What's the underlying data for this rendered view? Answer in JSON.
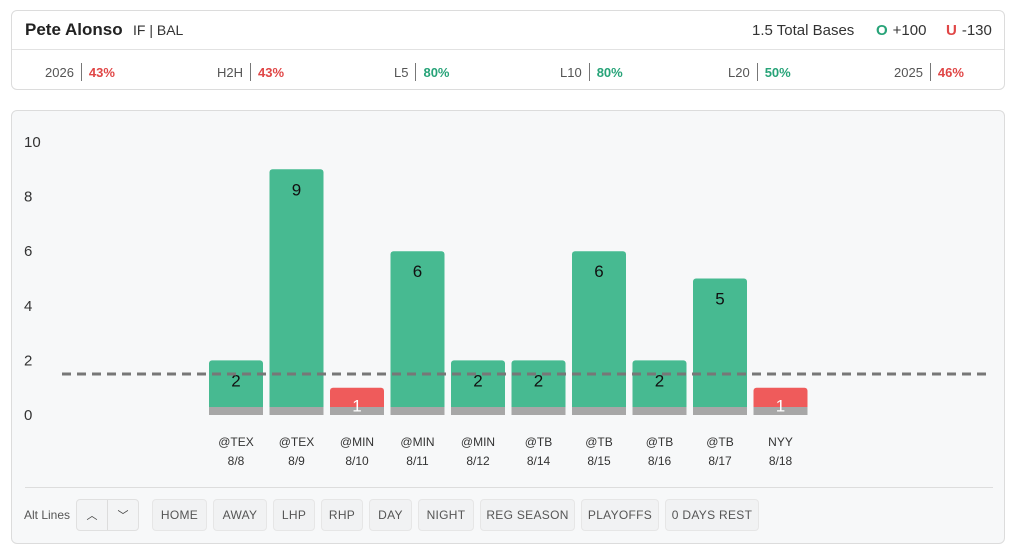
{
  "player": {
    "name": "Pete Alonso",
    "meta": "IF | BAL"
  },
  "prop": {
    "line_label": "1.5 Total Bases",
    "over_letter": "O",
    "over_odds": "+100",
    "under_letter": "U",
    "under_odds": "-130"
  },
  "stats": [
    {
      "label": "2026",
      "value": "43%",
      "status": "red"
    },
    {
      "label": "H2H",
      "value": "43%",
      "status": "red"
    },
    {
      "label": "L5",
      "value": "80%",
      "status": "green"
    },
    {
      "label": "L10",
      "value": "80%",
      "status": "green"
    },
    {
      "label": "L20",
      "value": "50%",
      "status": "green"
    },
    {
      "label": "2025",
      "value": "46%",
      "status": "red"
    }
  ],
  "colors": {
    "hit": "#47ba91",
    "miss": "#ef5b5b",
    "base": "#a7a7a7",
    "line": "#777777",
    "over_accent": "#27a378",
    "under_accent": "#e04646"
  },
  "chart_data": {
    "type": "bar",
    "categories": [
      "@TEX",
      "@TEX",
      "@MIN",
      "@MIN",
      "@MIN",
      "@TB",
      "@TB",
      "@TB",
      "@TB",
      "NYY"
    ],
    "dates": [
      "8/8",
      "8/9",
      "8/10",
      "8/11",
      "8/12",
      "8/14",
      "8/15",
      "8/16",
      "8/17",
      "8/18"
    ],
    "values": [
      2,
      9,
      1,
      6,
      2,
      2,
      6,
      2,
      5,
      1
    ],
    "threshold": 1.5,
    "y_ticks": [
      0,
      2,
      4,
      6,
      8,
      10
    ],
    "ylim": [
      0,
      10
    ],
    "grid": false,
    "legend": "none"
  },
  "filters": {
    "alt_lines_label": "Alt Lines",
    "up_icon": "chevron-up-icon",
    "down_icon": "chevron-down-icon",
    "up_glyph": "︿",
    "down_glyph": "﹀",
    "buttons": [
      "HOME",
      "AWAY",
      "LHP",
      "RHP",
      "DAY",
      "NIGHT",
      "REG SEASON",
      "PLAYOFFS",
      "0 DAYS REST"
    ]
  }
}
